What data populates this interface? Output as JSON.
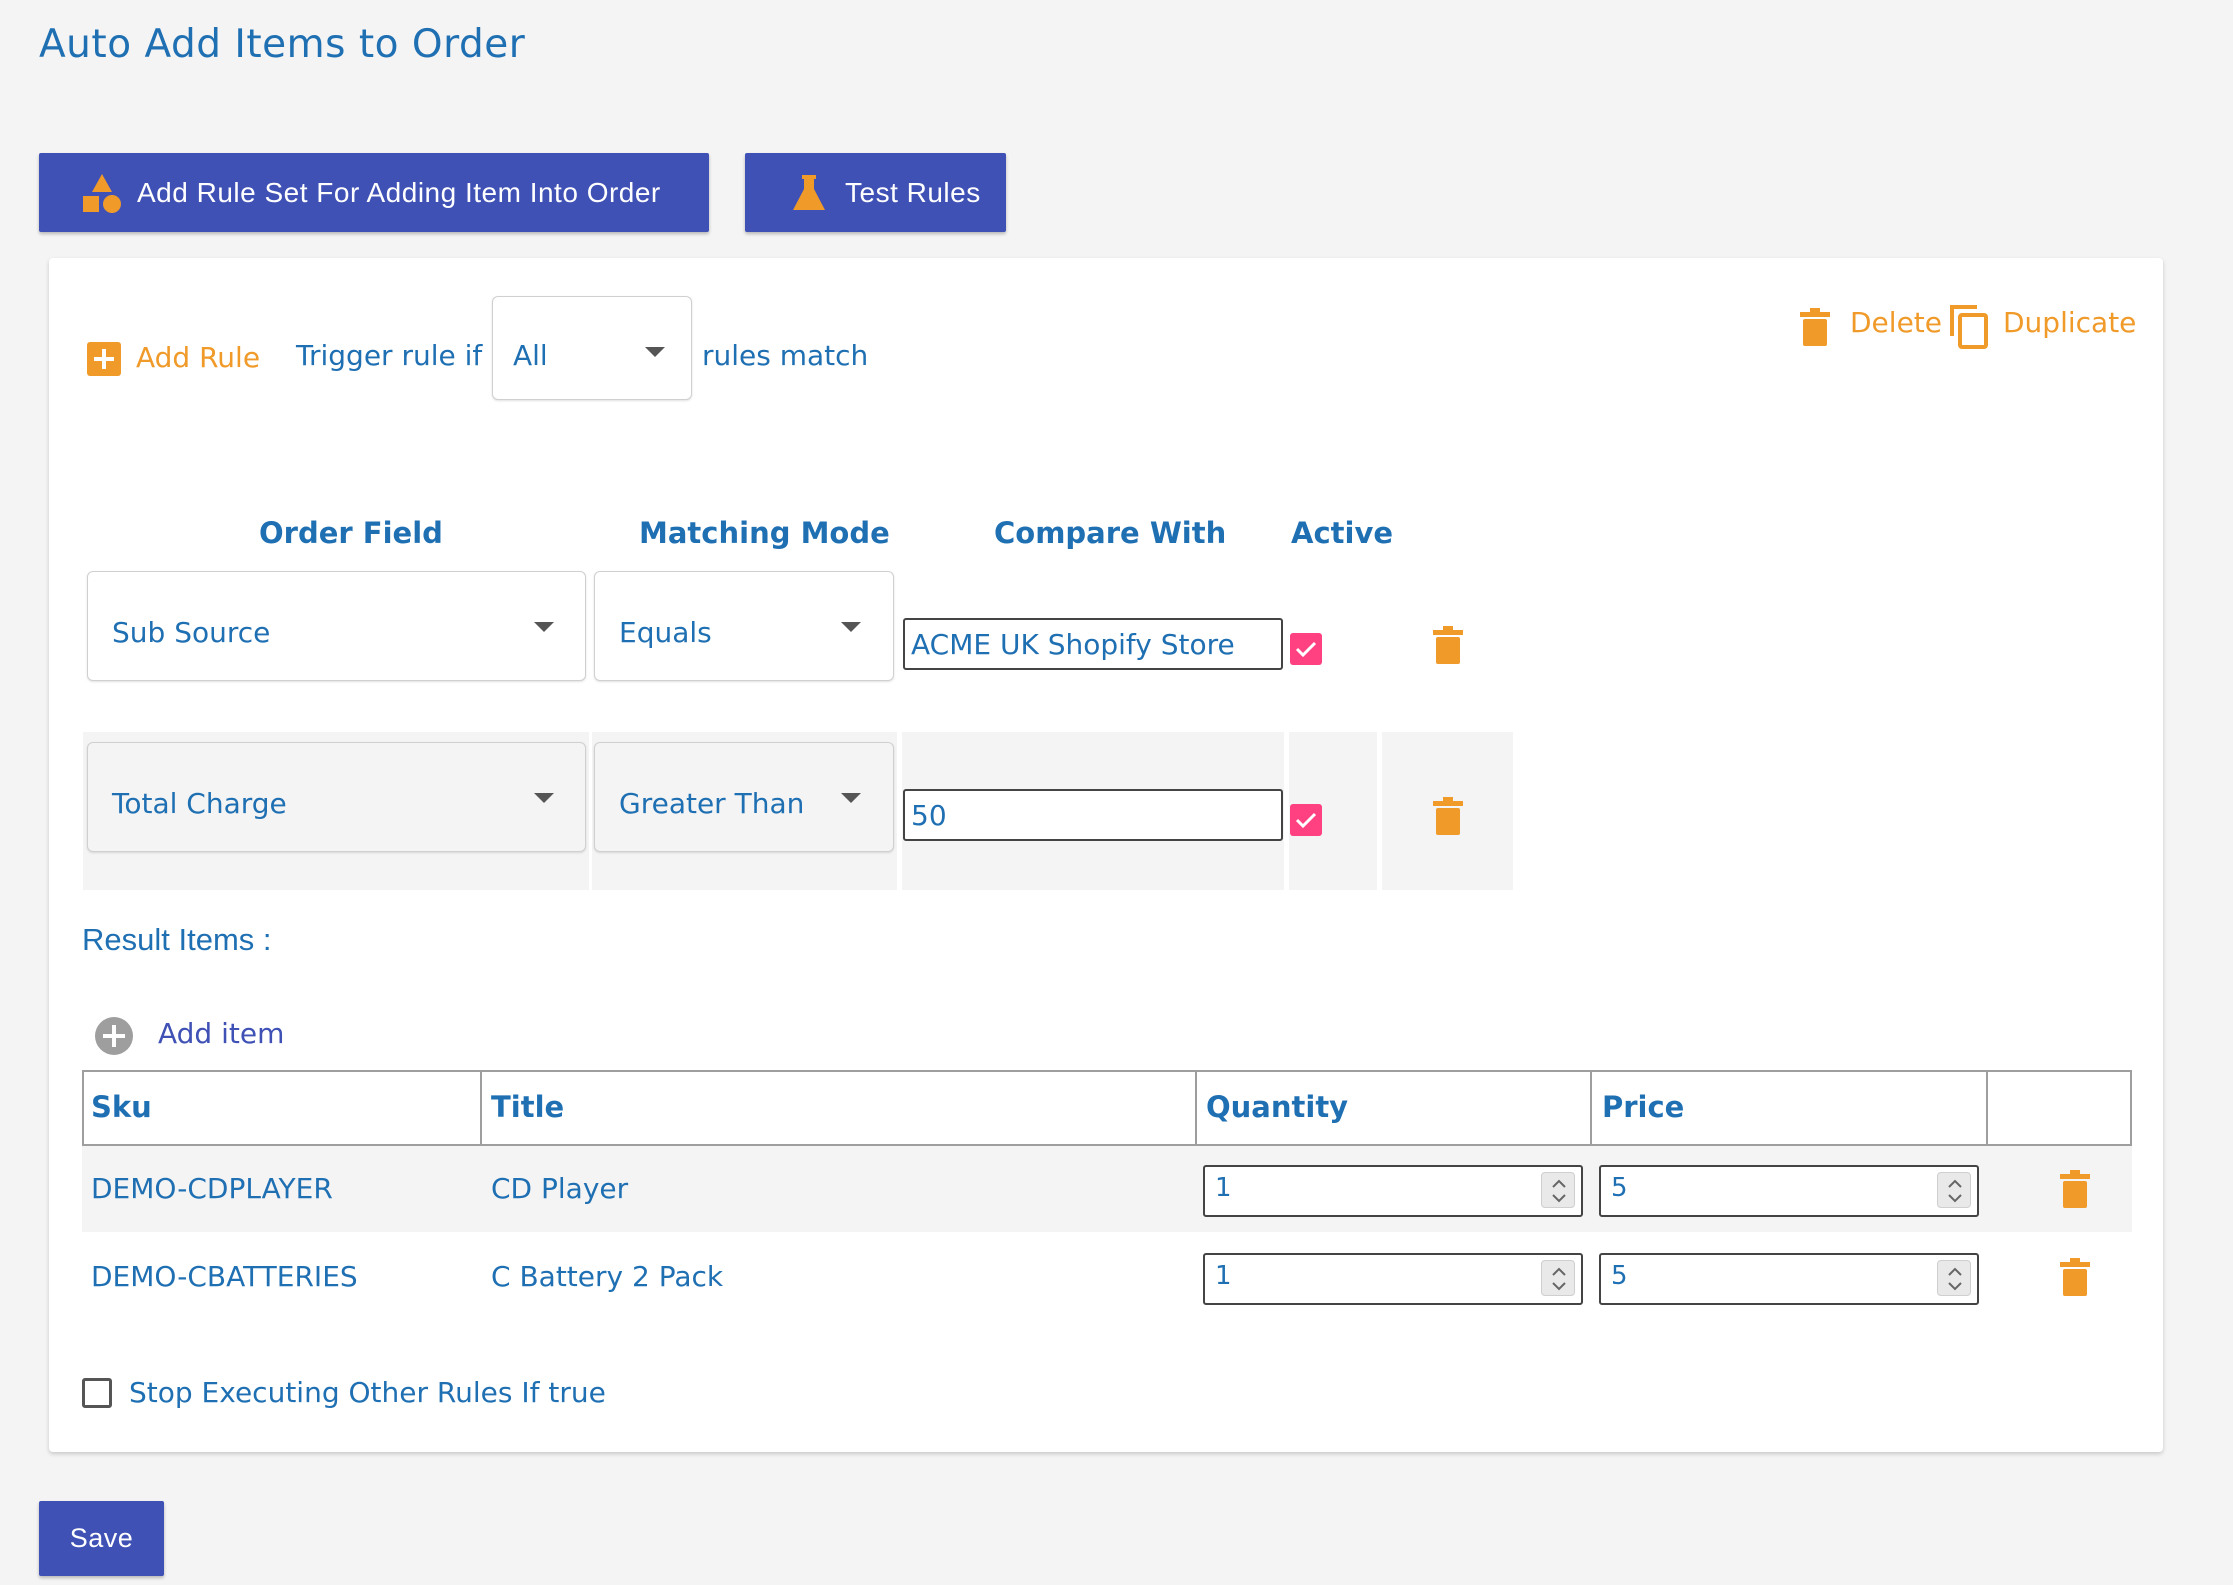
{
  "page": {
    "title": "Auto Add Items to Order"
  },
  "toolbar": {
    "add_rule_set_label": "Add Rule Set For Adding Item Into Order",
    "test_rules_label": "Test Rules"
  },
  "rule_set": {
    "add_rule_label": "Add Rule",
    "trigger_prefix": "Trigger rule if",
    "trigger_value": "All",
    "trigger_suffix": "rules match",
    "delete_label": "Delete",
    "duplicate_label": "Duplicate",
    "columns": {
      "order_field": "Order Field",
      "matching_mode": "Matching Mode",
      "compare_with": "Compare With",
      "active": "Active"
    },
    "rules": [
      {
        "order_field": "Sub Source",
        "matching_mode": "Equals",
        "compare_with": "ACME UK Shopify Store",
        "active": true
      },
      {
        "order_field": "Total Charge",
        "matching_mode": "Greater Than",
        "compare_with": "50",
        "active": true
      }
    ],
    "result_items_label": "Result Items :",
    "add_item_label": "Add item",
    "items_table": {
      "headers": {
        "sku": "Sku",
        "title": "Title",
        "quantity": "Quantity",
        "price": "Price"
      },
      "rows": [
        {
          "sku": "DEMO-CDPLAYER",
          "title": "CD Player",
          "quantity": "1",
          "price": "5"
        },
        {
          "sku": "DEMO-CBATTERIES",
          "title": "C Battery 2 Pack",
          "quantity": "1",
          "price": "5"
        }
      ]
    },
    "stop_executing_label": "Stop Executing Other Rules If true",
    "stop_executing_checked": false
  },
  "footer": {
    "save_label": "Save"
  },
  "colors": {
    "primary": "#3f51b5",
    "accent_orange": "#f09a2a",
    "text_blue": "#1f6fb3",
    "checkbox_pink": "#ff4081"
  },
  "icons": {
    "add_rule_set": "shapes-icon",
    "test_rules": "flask-icon",
    "add_rule": "plus-square-icon",
    "delete": "trash-icon",
    "duplicate": "copy-icon",
    "add_item": "plus-circle-icon"
  }
}
